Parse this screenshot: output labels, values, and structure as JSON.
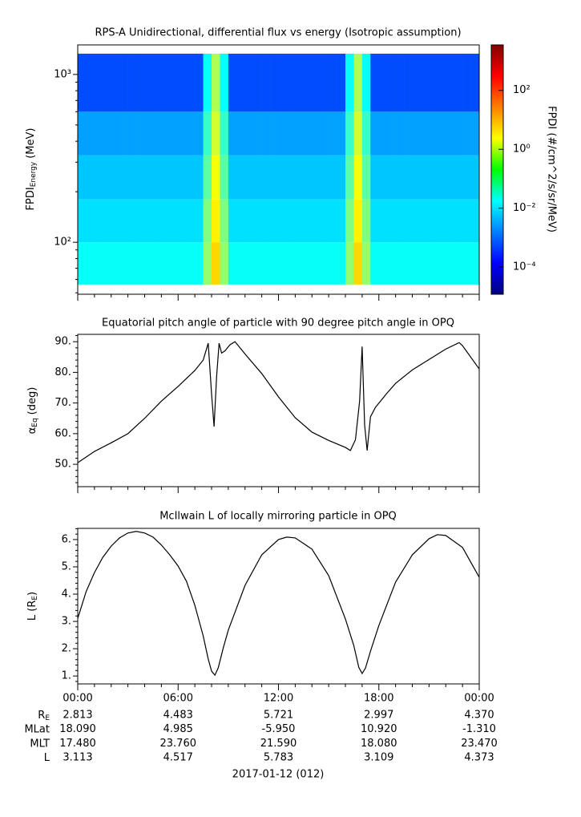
{
  "chart_data": [
    {
      "type": "heatmap",
      "title": "RPS-A Unidirectional, differential flux vs energy (Isotropic assumption)",
      "ylabel": {
        "text": "FPDI",
        "sub": "Energy",
        "unit": "(MeV)"
      },
      "zlabel": "FPDI (#/cm^2/s/sr/MeV)",
      "log_y": true,
      "log_z": true,
      "colormap": "jet",
      "xlim": [
        0,
        24
      ],
      "xticks": [
        {
          "value": 0,
          "label": "00:00"
        },
        {
          "value": 6,
          "label": "06:00"
        },
        {
          "value": 12,
          "label": "12:00"
        },
        {
          "value": 18,
          "label": "18:00"
        },
        {
          "value": 24,
          "label": "00:00"
        }
      ],
      "xminorticks": [
        1,
        2,
        3,
        4,
        5,
        7,
        8,
        9,
        10,
        11,
        13,
        14,
        15,
        16,
        17,
        19,
        20,
        21,
        22,
        23
      ],
      "ylim": [
        49,
        1500
      ],
      "yticks": [
        {
          "value": 100,
          "label": "10²"
        },
        {
          "value": 1000,
          "label": "10³"
        }
      ],
      "yminorticks": [
        50,
        60,
        70,
        80,
        90,
        200,
        300,
        400,
        500,
        600,
        700,
        800,
        900
      ],
      "zlim": [
        1.2e-05,
        3500
      ],
      "zticks": [
        {
          "value": 0.0001,
          "label": "10⁻⁴"
        },
        {
          "value": 0.01,
          "label": "10⁻²"
        },
        {
          "value": 1,
          "label": "10⁰"
        },
        {
          "value": 100,
          "label": "10²"
        }
      ],
      "xbins": [
        0,
        0.5,
        1,
        1.5,
        2,
        2.5,
        3,
        3.5,
        4,
        4.5,
        5,
        5.5,
        6,
        6.5,
        7,
        7.5,
        8,
        8.5,
        9,
        9.5,
        10,
        10.5,
        11,
        11.5,
        12,
        12.5,
        13,
        13.5,
        14,
        14.5,
        15,
        15.5,
        16,
        16.5,
        17,
        17.5,
        18,
        18.5,
        19,
        19.5,
        20,
        20.5,
        21,
        21.5,
        22,
        22.5,
        23,
        23.5,
        24
      ],
      "ybins": [
        56,
        100,
        180,
        330,
        600,
        1330
      ],
      "values": [
        [
          0.02,
          0.02,
          0.02,
          0.02,
          0.02,
          0.02,
          0.02,
          0.02,
          0.02,
          0.02,
          0.02,
          0.02,
          0.02,
          0.02,
          0.02,
          0.3,
          5,
          0.3,
          0.02,
          0.02,
          0.02,
          0.02,
          0.02,
          0.02,
          0.02,
          0.02,
          0.02,
          0.02,
          0.02,
          0.02,
          0.02,
          0.02,
          0.3,
          5,
          0.3,
          0.02,
          0.02,
          0.02,
          0.02,
          0.02,
          0.02,
          0.02,
          0.02,
          0.02,
          0.02,
          0.02,
          0.02,
          0.02
        ],
        [
          0.01,
          0.01,
          0.01,
          0.01,
          0.01,
          0.01,
          0.01,
          0.01,
          0.01,
          0.01,
          0.01,
          0.01,
          0.01,
          0.01,
          0.01,
          0.2,
          3,
          0.2,
          0.01,
          0.01,
          0.01,
          0.01,
          0.01,
          0.01,
          0.01,
          0.01,
          0.01,
          0.01,
          0.01,
          0.01,
          0.01,
          0.01,
          0.2,
          3,
          0.2,
          0.01,
          0.01,
          0.01,
          0.01,
          0.01,
          0.01,
          0.01,
          0.01,
          0.01,
          0.01,
          0.01,
          0.01,
          0.01
        ],
        [
          0.006,
          0.006,
          0.006,
          0.006,
          0.006,
          0.006,
          0.006,
          0.006,
          0.006,
          0.006,
          0.006,
          0.006,
          0.006,
          0.006,
          0.006,
          0.1,
          2,
          0.1,
          0.006,
          0.006,
          0.006,
          0.006,
          0.006,
          0.006,
          0.006,
          0.006,
          0.006,
          0.006,
          0.006,
          0.006,
          0.006,
          0.006,
          0.1,
          2,
          0.1,
          0.006,
          0.006,
          0.006,
          0.006,
          0.006,
          0.006,
          0.006,
          0.006,
          0.006,
          0.006,
          0.006,
          0.006,
          0.006
        ],
        [
          0.003,
          0.003,
          0.003,
          0.003,
          0.003,
          0.003,
          0.003,
          0.003,
          0.003,
          0.003,
          0.003,
          0.003,
          0.003,
          0.003,
          0.003,
          0.05,
          1,
          0.05,
          0.003,
          0.003,
          0.003,
          0.003,
          0.003,
          0.003,
          0.003,
          0.003,
          0.003,
          0.003,
          0.003,
          0.003,
          0.003,
          0.003,
          0.05,
          1,
          0.05,
          0.003,
          0.003,
          0.003,
          0.003,
          0.003,
          0.003,
          0.003,
          0.003,
          0.003,
          0.003,
          0.003,
          0.003,
          0.003
        ],
        [
          0.0006,
          0.0006,
          0.0006,
          0.0006,
          0.0006,
          0.0006,
          0.0006,
          0.0006,
          0.0006,
          0.0006,
          0.0006,
          0.0006,
          0.0006,
          0.0006,
          0.0006,
          0.02,
          0.5,
          0.02,
          0.0006,
          0.0006,
          0.0006,
          0.0006,
          0.0006,
          0.0006,
          0.0006,
          0.0006,
          0.0006,
          0.0006,
          0.0006,
          0.0006,
          0.0006,
          0.0006,
          0.02,
          0.5,
          0.02,
          0.0006,
          0.0006,
          0.0006,
          0.0006,
          0.0006,
          0.0006,
          0.0006,
          0.0006,
          0.0006,
          0.0006,
          0.0006,
          0.0006,
          0.0006
        ]
      ]
    },
    {
      "type": "line",
      "title": "Equatorial pitch angle of particle with 90 degree pitch angle in OPQ",
      "ylabel": {
        "text": "α",
        "sub": "Eq",
        "unit": "(deg)"
      },
      "color": "#000000",
      "xlim": [
        0,
        24
      ],
      "xticks": [
        {
          "value": 0,
          "label": "00:00"
        },
        {
          "value": 6,
          "label": "06:00"
        },
        {
          "value": 12,
          "label": "12:00"
        },
        {
          "value": 18,
          "label": "18:00"
        },
        {
          "value": 24,
          "label": "00:00"
        }
      ],
      "xminorticks": [
        1,
        2,
        3,
        4,
        5,
        7,
        8,
        9,
        10,
        11,
        13,
        14,
        15,
        16,
        17,
        19,
        20,
        21,
        22,
        23
      ],
      "ylim": [
        42.7,
        92.4
      ],
      "yticks": [
        {
          "value": 50,
          "label": "50."
        },
        {
          "value": 60,
          "label": "60."
        },
        {
          "value": 70,
          "label": "70."
        },
        {
          "value": 80,
          "label": "80."
        },
        {
          "value": 90,
          "label": "90."
        }
      ],
      "yminorticks": [
        44,
        46,
        48,
        52,
        54,
        56,
        58,
        62,
        64,
        66,
        68,
        72,
        74,
        76,
        78,
        82,
        84,
        86,
        88,
        92
      ],
      "x": [
        0,
        1,
        2,
        3,
        4,
        5,
        6,
        7,
        7.5,
        7.8,
        8.0,
        8.15,
        8.3,
        8.45,
        8.6,
        8.8,
        9.1,
        9.4,
        10,
        11,
        12,
        13,
        14,
        15,
        16,
        16.3,
        16.6,
        16.85,
        17,
        17.15,
        17.3,
        17.5,
        17.8,
        18.5,
        19,
        20,
        21,
        22,
        22.8,
        23,
        24
      ],
      "values": [
        50.5,
        54.2,
        57,
        60,
        65,
        70.6,
        75.4,
        80.6,
        84,
        89.5,
        73,
        62.3,
        78.5,
        89.5,
        86.3,
        87,
        89,
        90,
        86,
        79.6,
        72,
        65.2,
        60.5,
        57.8,
        55.5,
        54.5,
        58,
        70.6,
        88.4,
        62.8,
        54.5,
        65.5,
        68.6,
        73.3,
        76.4,
        80.8,
        84.2,
        87.6,
        89.7,
        88.7,
        81.1
      ]
    },
    {
      "type": "line",
      "title": "McIlwain L of locally mirroring particle in OPQ",
      "ylabel": {
        "text": "L (R",
        "sub": "E",
        "unit": ")"
      },
      "color": "#000000",
      "xlim": [
        0,
        24
      ],
      "xticks": [
        {
          "value": 0,
          "label": "00:00"
        },
        {
          "value": 6,
          "label": "06:00"
        },
        {
          "value": 12,
          "label": "12:00"
        },
        {
          "value": 18,
          "label": "18:00"
        },
        {
          "value": 24,
          "label": "00:00"
        }
      ],
      "xminorticks": [
        1,
        2,
        3,
        4,
        5,
        7,
        8,
        9,
        10,
        11,
        13,
        14,
        15,
        16,
        17,
        19,
        20,
        21,
        22,
        23
      ],
      "ylim": [
        0.71,
        6.41
      ],
      "yticks": [
        {
          "value": 1,
          "label": "1."
        },
        {
          "value": 2,
          "label": "2."
        },
        {
          "value": 3,
          "label": "3."
        },
        {
          "value": 4,
          "label": "4."
        },
        {
          "value": 5,
          "label": "5."
        },
        {
          "value": 6,
          "label": "6."
        }
      ],
      "yminorticks": [
        0.8,
        1.2,
        1.4,
        1.6,
        1.8,
        2.2,
        2.4,
        2.6,
        2.8,
        3.2,
        3.4,
        3.6,
        3.8,
        4.2,
        4.4,
        4.6,
        4.8,
        5.2,
        5.4,
        5.6,
        5.8,
        6.2,
        6.4
      ],
      "x": [
        0,
        0.5,
        1,
        1.5,
        2,
        2.5,
        3,
        3.5,
        4,
        4.5,
        5,
        5.5,
        6,
        6.5,
        7,
        7.5,
        7.8,
        8.0,
        8.2,
        8.4,
        8.7,
        9,
        10,
        11,
        12,
        12.5,
        13,
        14,
        15,
        16,
        16.5,
        16.8,
        17,
        17.2,
        17.5,
        18,
        19,
        20,
        21,
        21.5,
        22,
        23,
        24
      ],
      "values": [
        3.11,
        4.09,
        4.79,
        5.35,
        5.76,
        6.06,
        6.24,
        6.3,
        6.24,
        6.09,
        5.8,
        5.44,
        5.03,
        4.47,
        3.59,
        2.47,
        1.62,
        1.18,
        1.03,
        1.3,
        2.03,
        2.68,
        4.32,
        5.44,
        6.0,
        6.09,
        6.06,
        5.65,
        4.68,
        3.09,
        2.12,
        1.32,
        1.09,
        1.29,
        1.91,
        2.85,
        4.44,
        5.44,
        6.03,
        6.18,
        6.15,
        5.71,
        4.62
      ]
    }
  ],
  "ephemeris": {
    "rows": [
      {
        "label": "R",
        "sub": "E",
        "values": [
          "2.813",
          "4.483",
          "5.721",
          "2.997",
          "4.370"
        ]
      },
      {
        "label": "MLat",
        "values": [
          "18.090",
          "4.985",
          "-5.950",
          "10.920",
          "-1.310"
        ]
      },
      {
        "label": "MLT",
        "values": [
          "17.480",
          "23.760",
          "21.590",
          "18.080",
          "23.470"
        ]
      },
      {
        "label": "L",
        "values": [
          "3.113",
          "4.517",
          "5.783",
          "3.109",
          "4.373"
        ]
      }
    ],
    "date": "2017-01-12 (012)"
  }
}
